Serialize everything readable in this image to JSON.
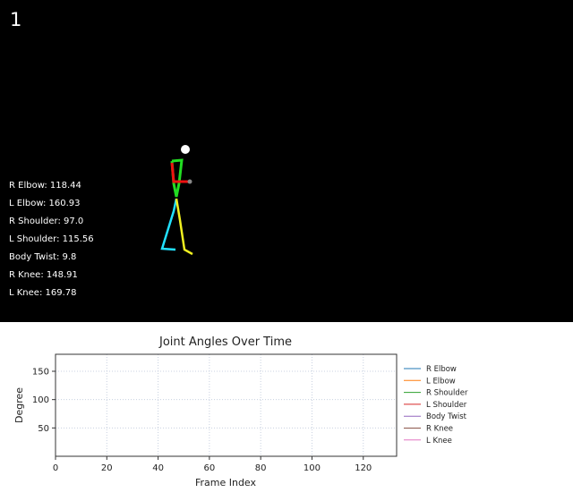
{
  "frame": {
    "number": "1"
  },
  "angle_readouts": [
    {
      "label": "R Elbow",
      "value": "118.44"
    },
    {
      "label": "L Elbow",
      "value": "160.93"
    },
    {
      "label": "R Shoulder",
      "value": "97.0"
    },
    {
      "label": "L Shoulder",
      "value": "115.56"
    },
    {
      "label": "Body Twist",
      "value": "9.8"
    },
    {
      "label": "R Knee",
      "value": "148.91"
    },
    {
      "label": "L Knee",
      "value": "169.78"
    }
  ],
  "skeleton_colors": {
    "head": "#ffffff",
    "torso": "#22dd22",
    "right_arm": "#ee1111",
    "right_leg": "#22e0ff",
    "left_leg": "#f0f020",
    "joint": "#888888"
  },
  "chart_data": {
    "type": "line",
    "title": "Joint Angles Over Time",
    "xlabel": "Frame Index",
    "ylabel": "Degree",
    "xlim": [
      0,
      133
    ],
    "ylim": [
      0,
      180
    ],
    "xticks": [
      0,
      20,
      40,
      60,
      80,
      100,
      120
    ],
    "yticks": [
      50,
      100,
      150
    ],
    "grid": true,
    "legend_position": "outside-right",
    "series": [
      {
        "name": "R Elbow",
        "color": "#1f77b4",
        "x": [],
        "y": []
      },
      {
        "name": "L Elbow",
        "color": "#ff7f0e",
        "x": [],
        "y": []
      },
      {
        "name": "R Shoulder",
        "color": "#2ca02c",
        "x": [],
        "y": []
      },
      {
        "name": "L Shoulder",
        "color": "#d62728",
        "x": [],
        "y": []
      },
      {
        "name": "Body Twist",
        "color": "#9467bd",
        "x": [],
        "y": []
      },
      {
        "name": "R Knee",
        "color": "#8c564b",
        "x": [],
        "y": []
      },
      {
        "name": "L Knee",
        "color": "#e377c2",
        "x": [],
        "y": []
      }
    ]
  }
}
